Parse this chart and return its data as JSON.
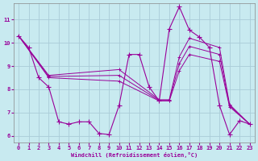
{
  "xlabel": "Windchill (Refroidissement éolien,°C)",
  "xlim_left": -0.5,
  "xlim_right": 23.5,
  "ylim_bottom": 5.7,
  "ylim_top": 11.7,
  "yticks": [
    6,
    7,
    8,
    9,
    10,
    11
  ],
  "xticks": [
    0,
    1,
    2,
    3,
    4,
    5,
    6,
    7,
    8,
    9,
    10,
    11,
    12,
    13,
    14,
    15,
    16,
    17,
    18,
    19,
    20,
    21,
    22,
    23
  ],
  "background_color": "#c8eaf0",
  "grid_color": "#aaccd8",
  "line_color": "#990099",
  "main_curve_x": [
    0,
    1,
    2,
    3,
    4,
    5,
    6,
    7,
    8,
    9,
    10,
    11,
    12,
    13,
    14,
    15,
    16,
    17,
    18,
    19,
    20,
    21,
    22,
    23
  ],
  "main_curve_y": [
    10.3,
    9.8,
    8.5,
    8.1,
    6.6,
    6.5,
    6.6,
    6.6,
    6.1,
    6.05,
    7.3,
    9.5,
    9.5,
    8.1,
    7.5,
    10.6,
    11.55,
    10.55,
    10.25,
    9.8,
    7.3,
    6.05,
    6.65,
    6.5
  ],
  "smooth_curves": [
    {
      "x": [
        0,
        3,
        10,
        14,
        15,
        16,
        17,
        20,
        21,
        23
      ],
      "y": [
        10.3,
        8.6,
        8.85,
        7.55,
        7.55,
        9.4,
        10.2,
        9.8,
        7.35,
        6.5
      ]
    },
    {
      "x": [
        0,
        3,
        10,
        14,
        15,
        16,
        17,
        20,
        21,
        23
      ],
      "y": [
        10.3,
        8.55,
        8.6,
        7.52,
        7.52,
        9.1,
        9.85,
        9.5,
        7.3,
        6.5
      ]
    },
    {
      "x": [
        0,
        3,
        10,
        14,
        15,
        16,
        17,
        20,
        21,
        23
      ],
      "y": [
        10.3,
        8.5,
        8.35,
        7.5,
        7.5,
        8.8,
        9.5,
        9.2,
        7.25,
        6.5
      ]
    }
  ]
}
